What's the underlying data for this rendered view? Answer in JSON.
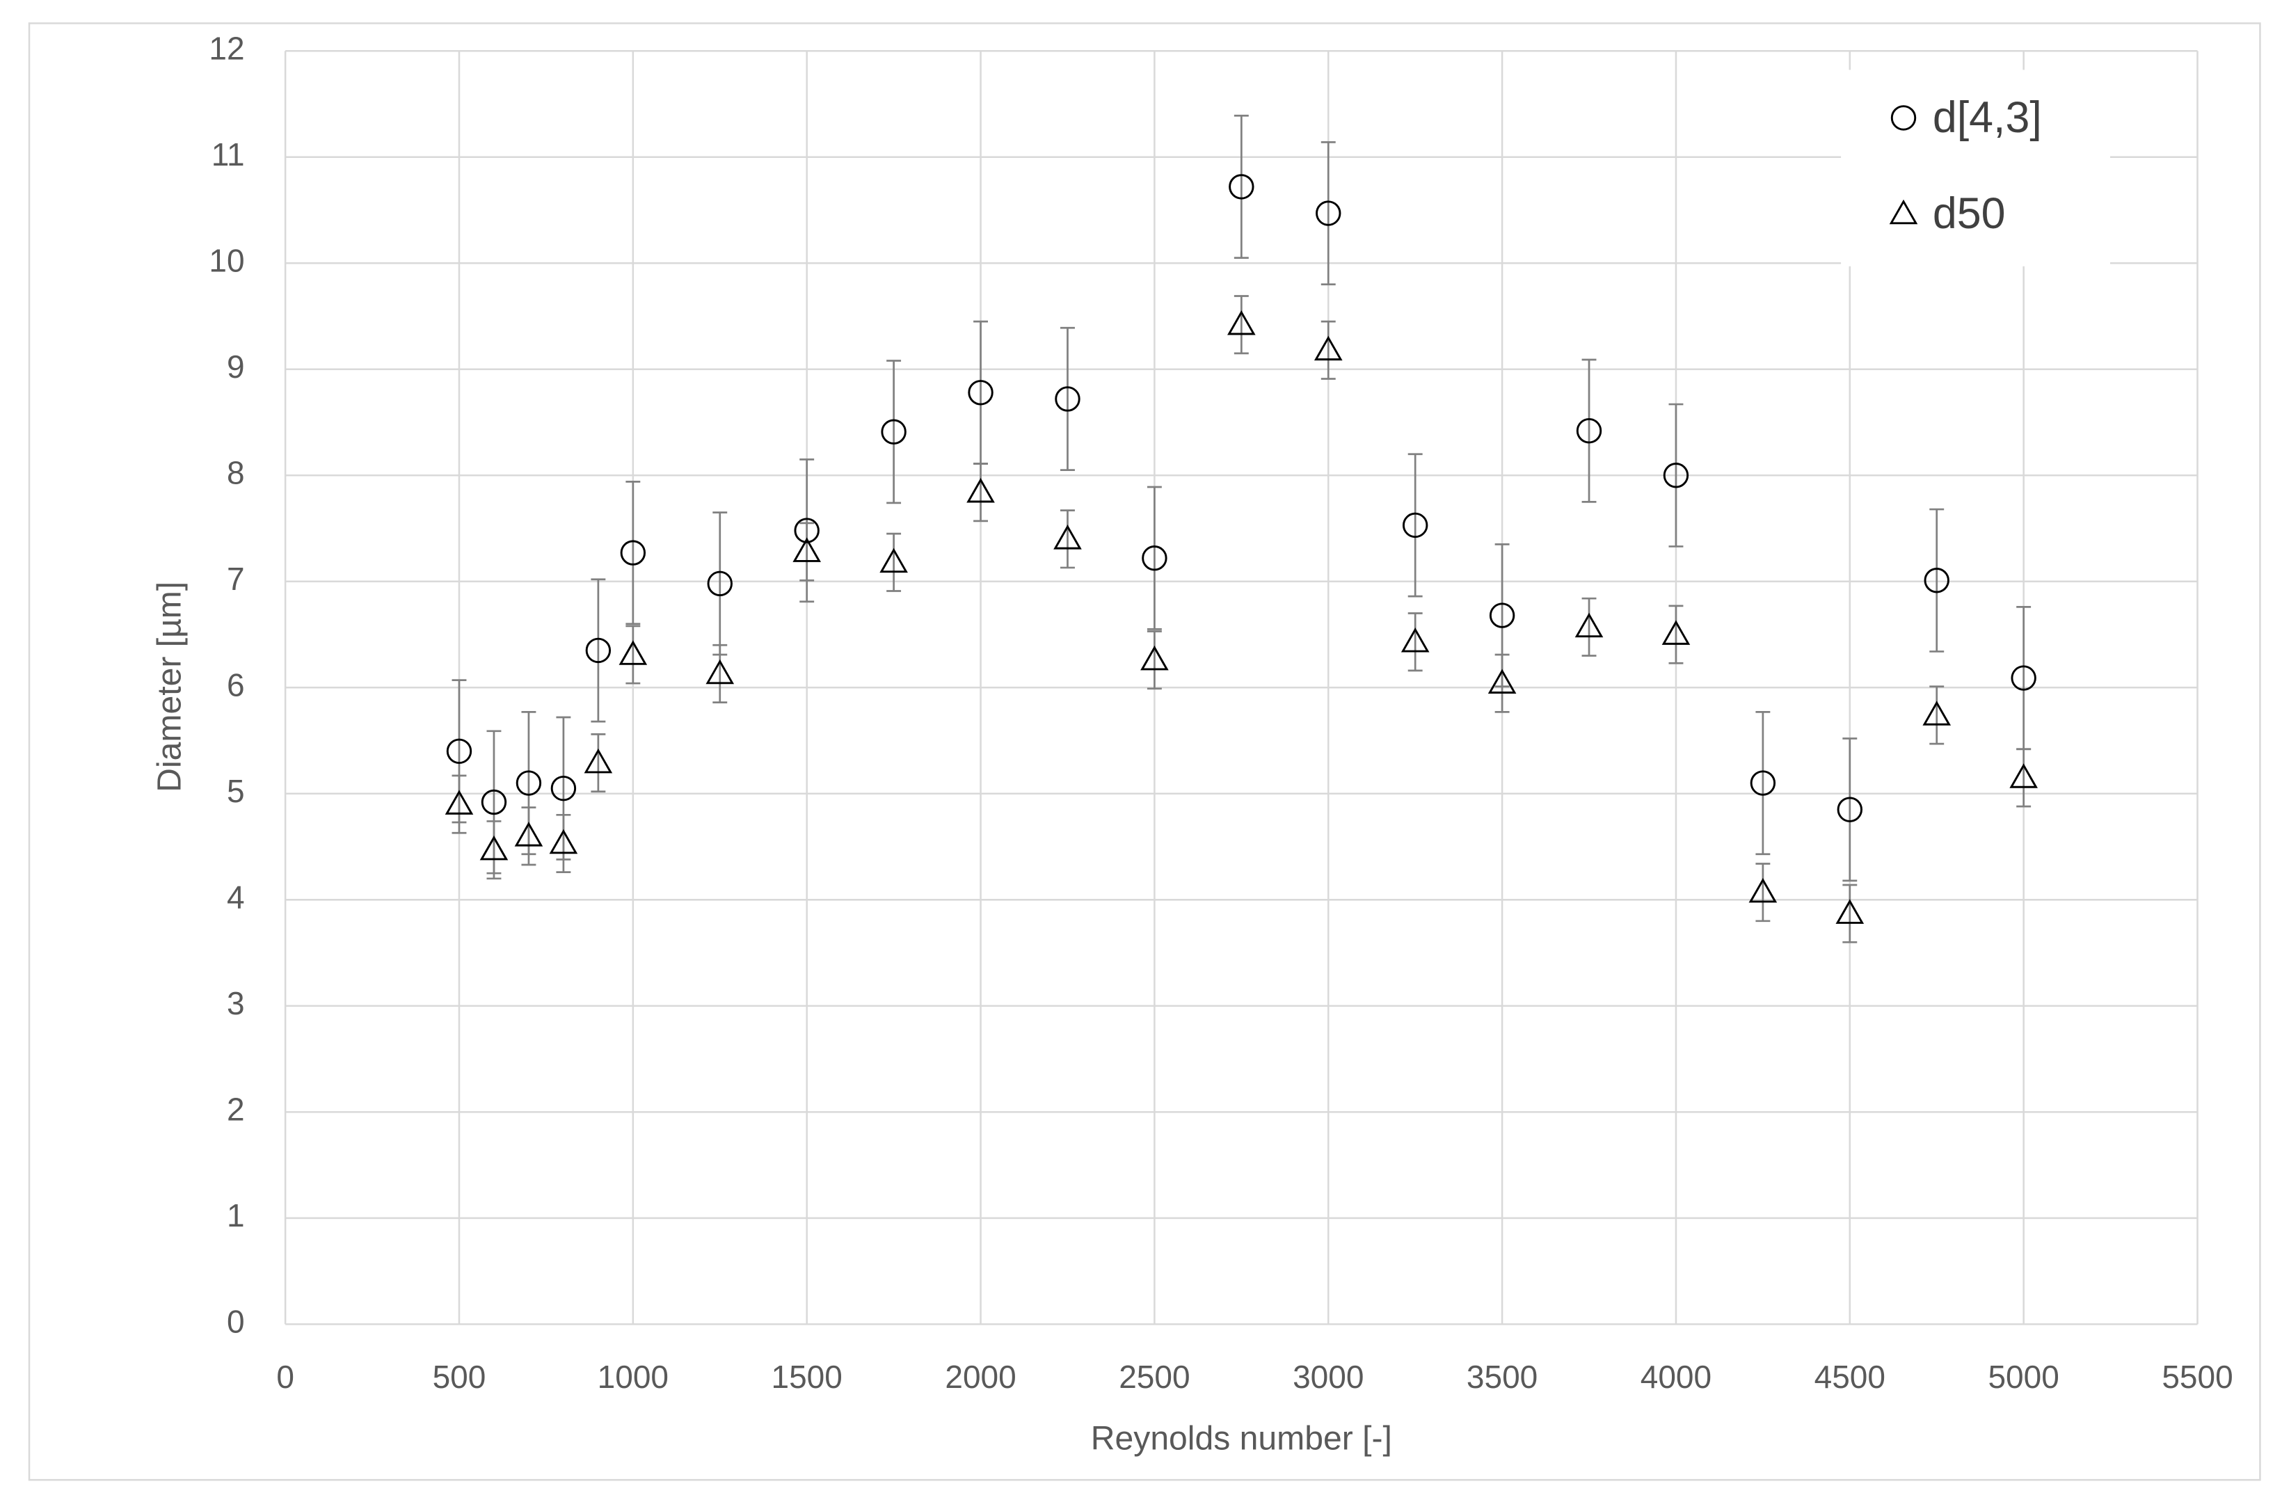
{
  "chart_data": {
    "type": "scatter",
    "x_label": "Reynolds number [-]",
    "y_label": "Diameter [µm]",
    "x": [
      500,
      600,
      700,
      800,
      900,
      1000,
      1250,
      1500,
      1750,
      2000,
      2250,
      2500,
      2750,
      3000,
      3250,
      3500,
      3750,
      4000,
      4250,
      4500,
      4750,
      5000
    ],
    "series": [
      {
        "name": "d[4,3]",
        "marker": "circle",
        "color": "#000000",
        "values": [
          5.4,
          4.92,
          5.1,
          5.05,
          6.35,
          7.27,
          6.98,
          7.48,
          8.41,
          8.78,
          8.72,
          7.22,
          10.72,
          10.47,
          7.53,
          6.68,
          8.42,
          8.0,
          5.1,
          4.85,
          7.01,
          6.09
        ],
        "errors": [
          0.67,
          0.67,
          0.67,
          0.67,
          0.67,
          0.67,
          0.67,
          0.67,
          0.67,
          0.67,
          0.67,
          0.67,
          0.67,
          0.67,
          0.67,
          0.67,
          0.67,
          0.67,
          0.67,
          0.67,
          0.67,
          0.67
        ]
      },
      {
        "name": "d50",
        "marker": "triangle",
        "color": "#000000",
        "values": [
          4.9,
          4.47,
          4.6,
          4.53,
          5.29,
          6.31,
          6.13,
          7.28,
          7.18,
          7.84,
          7.4,
          6.26,
          9.42,
          9.18,
          6.43,
          6.04,
          6.57,
          6.5,
          4.07,
          3.87,
          5.74,
          5.15
        ],
        "errors": [
          0.27,
          0.27,
          0.27,
          0.27,
          0.27,
          0.27,
          0.27,
          0.27,
          0.27,
          0.27,
          0.27,
          0.27,
          0.27,
          0.27,
          0.27,
          0.27,
          0.27,
          0.27,
          0.27,
          0.27,
          0.27,
          0.27
        ]
      }
    ],
    "error_bar_color": "#808080",
    "xlim": [
      0,
      5500
    ],
    "xticks": [
      0,
      500,
      1000,
      1500,
      2000,
      2500,
      3000,
      3500,
      4000,
      4500,
      5000,
      5500
    ],
    "ylim": [
      0,
      12
    ],
    "yticks": [
      0,
      1,
      2,
      3,
      4,
      5,
      6,
      7,
      8,
      9,
      10,
      11,
      12
    ],
    "grid": true,
    "legend": "upper-right"
  }
}
